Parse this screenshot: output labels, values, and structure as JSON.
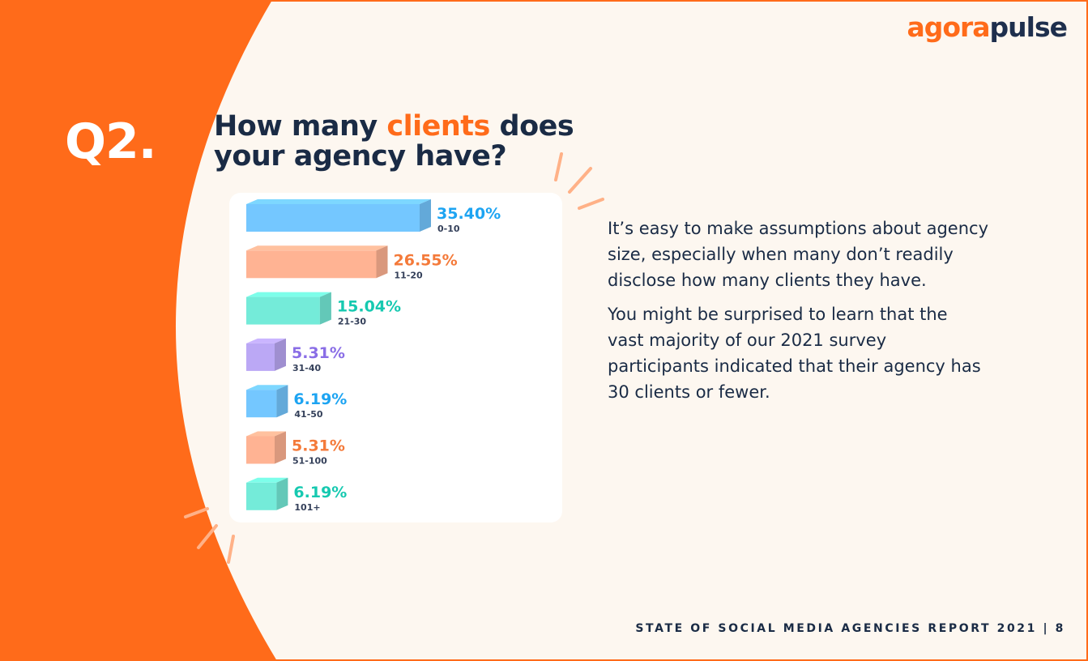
{
  "brand": {
    "part1": "agora",
    "part2": "pulse"
  },
  "question_number": "Q2.",
  "title": {
    "before": "How many ",
    "highlight": "clients",
    "after": " does your agency have?"
  },
  "description": [
    "It’s easy to make assumptions about agency size, especially when many don’t readily disclose how many clients they have.",
    "You might be surprised to learn that the vast majority of our 2021 survey participants indicated that their agency has 30 clients or fewer."
  ],
  "footer": "STATE OF SOCIAL MEDIA AGENCIES REPORT 2021 | 8",
  "colors": {
    "orange": "#ff6b1a",
    "navy": "#1a2b45",
    "background": "#fdf7f0"
  },
  "chart_data": {
    "type": "bar",
    "orientation": "horizontal",
    "categories": [
      "0-10",
      "11-20",
      "21-30",
      "31-40",
      "41-50",
      "51-100",
      "101+"
    ],
    "values": [
      35.4,
      26.55,
      15.04,
      5.31,
      6.19,
      5.31,
      6.19
    ],
    "value_labels": [
      "35.40%",
      "26.55%",
      "15.04%",
      "5.31%",
      "6.19%",
      "5.31%",
      "6.19%"
    ],
    "colors": [
      "#74c7ff",
      "#ffb393",
      "#74ebd9",
      "#bba8f5",
      "#74c7ff",
      "#ffb393",
      "#74ebd9"
    ],
    "label_colors": [
      "#1da4f2",
      "#f47a3a",
      "#16c9b0",
      "#8a6ee6",
      "#1da4f2",
      "#f47a3a",
      "#16c9b0"
    ],
    "title": "",
    "xlabel": "",
    "ylabel": "",
    "grid": false
  }
}
